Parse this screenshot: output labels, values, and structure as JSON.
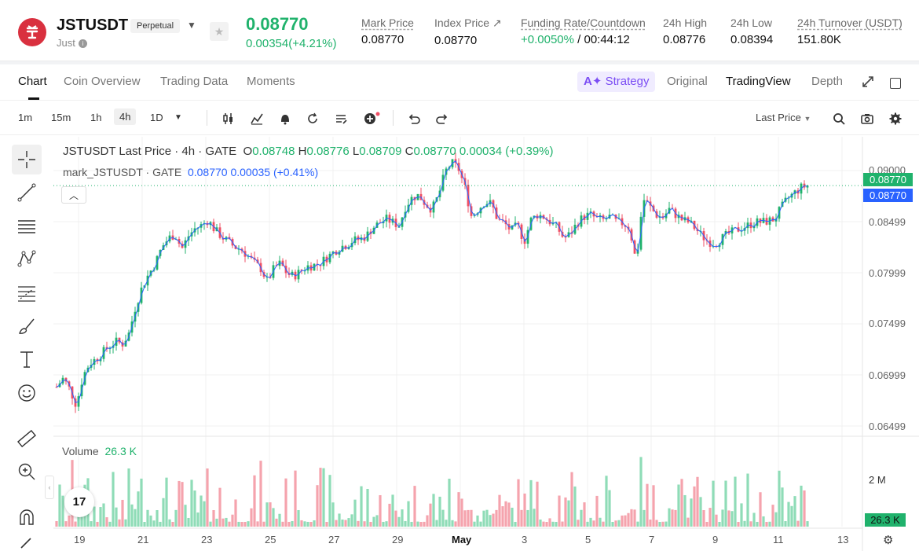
{
  "header": {
    "symbol": "JSTUSDT",
    "contract_type": "Perpetual",
    "base_name": "Just",
    "last_price": "0.08770",
    "change": "0.00354(+4.21%)",
    "stats": [
      {
        "label": "Mark Price",
        "value": "0.08770"
      },
      {
        "label": "Index Price ↗",
        "value": "0.08770"
      },
      {
        "label": "Funding Rate/Countdown",
        "value_green": "+0.0050%",
        "value_rest": " / 00:44:12"
      },
      {
        "label": "24h High",
        "value": "0.08776"
      },
      {
        "label": "24h Low",
        "value": "0.08394"
      },
      {
        "label": "24h Turnover (USDT)",
        "value": "151.80K"
      }
    ]
  },
  "tabs": [
    "Chart",
    "Coin Overview",
    "Trading Data",
    "Moments"
  ],
  "view_tabs": {
    "strategy": "Strategy",
    "original": "Original",
    "tradingview": "TradingView",
    "depth": "Depth"
  },
  "intervals": [
    "1m",
    "15m",
    "1h",
    "4h",
    "1D"
  ],
  "selected_interval": "4h",
  "price_source": "Last Price",
  "legend": {
    "title": "JSTUSDT Last Price · 4h · GATE",
    "o_label": "O",
    "o": "0.08748",
    "h_label": "H",
    "h": "0.08776",
    "l_label": "L",
    "l": "0.08709",
    "c_label": "C",
    "c": "0.08770",
    "chg": "0.00034 (+0.39%)",
    "mark_title": "mark_JSTUSDT · GATE",
    "mark_value": "0.08770",
    "mark_chg": "0.00035 (+0.41%)"
  },
  "volume_legend": {
    "label": "Volume",
    "value": "26.3 K"
  },
  "price_axis": [
    "0.09000",
    "0.08499",
    "0.07999",
    "0.07499",
    "0.06999",
    "0.06499"
  ],
  "price_tags": {
    "last": "0.08770",
    "mark": "0.08770"
  },
  "volume_axis": {
    "tick": "2 M",
    "tag": "26.3 K"
  },
  "date_axis": [
    "19",
    "21",
    "23",
    "25",
    "27",
    "29",
    "May",
    "3",
    "5",
    "7",
    "9",
    "11",
    "13"
  ],
  "colors": {
    "up": "#20b26c",
    "down": "#ef4f64",
    "mark_line": "#2962ff",
    "up_vol": "#8fdcb7",
    "down_vol": "#f5a3ad"
  },
  "chart_data": {
    "type": "candlestick",
    "close_path": [
      0.069,
      0.0698,
      0.0688,
      0.0673,
      0.07,
      0.0712,
      0.0716,
      0.0722,
      0.0728,
      0.0732,
      0.073,
      0.074,
      0.0765,
      0.0783,
      0.0795,
      0.0805,
      0.082,
      0.0828,
      0.0832,
      0.0818,
      0.083,
      0.0837,
      0.084,
      0.0845,
      0.0836,
      0.083,
      0.0825,
      0.082,
      0.0818,
      0.0812,
      0.0805,
      0.08,
      0.0788,
      0.08,
      0.0805,
      0.0795,
      0.0793,
      0.0797,
      0.0802,
      0.0803,
      0.0805,
      0.081,
      0.0815,
      0.082,
      0.0822,
      0.0826,
      0.0827,
      0.083,
      0.0838,
      0.0842,
      0.0846,
      0.0843,
      0.084,
      0.0858,
      0.0866,
      0.0868,
      0.086,
      0.0855,
      0.0868,
      0.089,
      0.0898,
      0.0893,
      0.0875,
      0.0848,
      0.0855,
      0.0862,
      0.086,
      0.0845,
      0.0842,
      0.0835,
      0.084,
      0.0825,
      0.0845,
      0.085,
      0.0848,
      0.0843,
      0.0838,
      0.0828,
      0.0832,
      0.0842,
      0.0848,
      0.085,
      0.0846,
      0.0845,
      0.0848,
      0.0843,
      0.0842,
      0.0838,
      0.0805,
      0.0865,
      0.0858,
      0.085,
      0.0847,
      0.0855,
      0.085,
      0.0845,
      0.0843,
      0.0837,
      0.083,
      0.0825,
      0.0823,
      0.0828,
      0.0832,
      0.0835,
      0.0838,
      0.084,
      0.0843,
      0.0843,
      0.0844,
      0.0846,
      0.0856,
      0.0865,
      0.087,
      0.0875,
      0.0877
    ],
    "ylim": [
      0.0645,
      0.0915
    ]
  }
}
